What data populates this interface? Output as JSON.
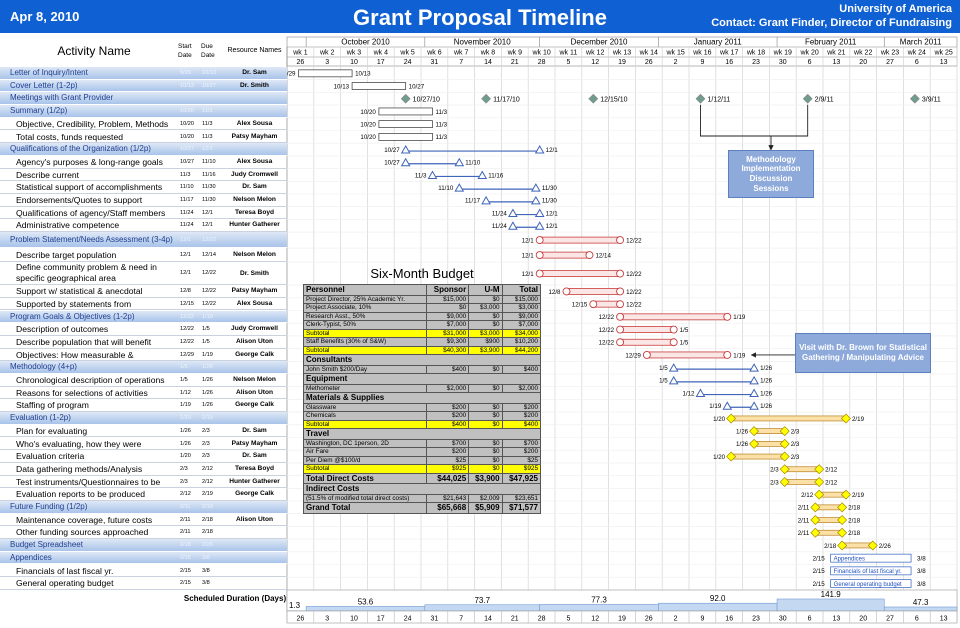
{
  "header": {
    "date": "Apr 8, 2010",
    "title": "Grant Proposal Timeline",
    "organization": "University of America",
    "contact": "Contact: Grant Finder, Director of Fundraising"
  },
  "columns": {
    "activity": "Activity Name",
    "start": "Start Date",
    "due": "Due Date",
    "resource": "Resource Names"
  },
  "timeline": {
    "months": [
      "October 2010",
      "November 2010",
      "December 2010",
      "January 2011",
      "February 2011",
      "March 2011"
    ],
    "weeks": [
      "wk 1",
      "wk 2",
      "wk 3",
      "wk 4",
      "wk 5",
      "wk 6",
      "wk 7",
      "wk 8",
      "wk 9",
      "wk 10",
      "wk 11",
      "wk 12",
      "wk 13",
      "wk 14",
      "wk 15",
      "wk 16",
      "wk 17",
      "wk 18",
      "wk 19",
      "wk 20",
      "wk 21",
      "wk 22",
      "wk 23",
      "wk 24",
      "wk 25"
    ],
    "days": [
      26,
      3,
      10,
      17,
      24,
      31,
      7,
      14,
      21,
      28,
      5,
      12,
      19,
      26,
      2,
      9,
      16,
      23,
      30,
      6,
      13,
      20,
      27,
      6,
      13
    ]
  },
  "rows": [
    {
      "group": true,
      "name": "Letter of Inquiry/Intent",
      "start": "9/29",
      "due": "10/13",
      "resource": "Dr. Sam"
    },
    {
      "group": true,
      "name": "Cover Letter (1-2p)",
      "start": "10/13",
      "due": "10/27",
      "resource": "Dr. Smith"
    },
    {
      "group": true,
      "name": "Meetings with Grant Provider",
      "milestones": [
        "10/27/10",
        "11/17/10",
        "12/15/10",
        "1/12/11",
        "2/9/11",
        "3/9/11"
      ]
    },
    {
      "group": true,
      "name": "Summary (1/2p)",
      "start": "10/20",
      "due": "11/3"
    },
    {
      "name": "Objective, Credibility, Problem, Methods",
      "start": "10/20",
      "due": "11/3",
      "resource": "Alex Sousa"
    },
    {
      "name": "Total costs, funds requested",
      "start": "10/20",
      "due": "11/3",
      "resource": "Patsy Mayham"
    },
    {
      "group": true,
      "name": "Qualifications of the Organization (1/2p)",
      "start": "10/27",
      "due": "12/1"
    },
    {
      "name": "Agency's purposes & long-range goals",
      "start": "10/27",
      "due": "11/10",
      "resource": "Alex Sousa"
    },
    {
      "name": "Describe current",
      "start": "11/3",
      "due": "11/16",
      "resource": "Judy Cromwell"
    },
    {
      "name": "Statistical support of accomplishments",
      "start": "11/10",
      "due": "11/30",
      "resource": "Dr. Sam"
    },
    {
      "name": "Endorsements/Quotes to support",
      "start": "11/17",
      "due": "11/30",
      "resource": "Nelson Melon"
    },
    {
      "name": "Qualifications of agency/Staff members",
      "start": "11/24",
      "due": "12/1",
      "resource": "Teresa Boyd"
    },
    {
      "name": "Administrative competence",
      "start": "11/24",
      "due": "12/1",
      "resource": "Hunter Gatherer"
    },
    {
      "group": true,
      "name": "Problem Statement/Needs Assessment (3-4p)",
      "start": "12/1",
      "due": "12/22"
    },
    {
      "name": "Describe target population",
      "start": "12/1",
      "due": "12/14",
      "resource": "Nelson Melon"
    },
    {
      "name": "Define community problem & need in specific geographical area",
      "start": "12/1",
      "due": "12/22",
      "resource": "Dr. Smith"
    },
    {
      "name": "Support w/ statistical & anecdotal",
      "start": "12/8",
      "due": "12/22",
      "resource": "Patsy Mayham"
    },
    {
      "name": "Supported by statements from",
      "start": "12/15",
      "due": "12/22",
      "resource": "Alex Sousa"
    },
    {
      "group": true,
      "name": "Program Goals & Objectives (1-2p)",
      "start": "12/22",
      "due": "1/19"
    },
    {
      "name": "Description of outcomes",
      "start": "12/22",
      "due": "1/5",
      "resource": "Judy Cromwell"
    },
    {
      "name": "Describe population that will benefit",
      "start": "12/22",
      "due": "1/5",
      "resource": "Alison Uton"
    },
    {
      "name": "Objectives: How measurable &",
      "start": "12/29",
      "due": "1/19",
      "resource": "George Calk"
    },
    {
      "group": true,
      "name": "Methodology (4+p)",
      "start": "1/5",
      "due": "1/26"
    },
    {
      "name": "Chronological description of operations",
      "start": "1/5",
      "due": "1/26",
      "resource": "Nelson Melon"
    },
    {
      "name": "Reasons for selections of activities",
      "start": "1/12",
      "due": "1/26",
      "resource": "Alison Uton"
    },
    {
      "name": "Staffing of program",
      "start": "1/19",
      "due": "1/26",
      "resource": "George Calk"
    },
    {
      "group": true,
      "name": "Evaluation (1-2p)",
      "start": "1/20",
      "due": "2/19"
    },
    {
      "name": "Plan for evaluating",
      "start": "1/26",
      "due": "2/3",
      "resource": "Dr. Sam"
    },
    {
      "name": "Who's evaluating, how they were",
      "start": "1/26",
      "due": "2/3",
      "resource": "Patsy Mayham"
    },
    {
      "name": "Evaluation criteria",
      "start": "1/20",
      "due": "2/3",
      "resource": "Dr. Sam"
    },
    {
      "name": "Data gathering methods/Analysis",
      "start": "2/3",
      "due": "2/12",
      "resource": "Teresa Boyd"
    },
    {
      "name": "Test instruments/Questionnaires to be",
      "start": "2/3",
      "due": "2/12",
      "resource": "Hunter Gatherer"
    },
    {
      "name": "Evaluation reports to be produced",
      "start": "2/12",
      "due": "2/19",
      "resource": "George Calk"
    },
    {
      "group": true,
      "name": "Future Funding (1/2p)",
      "start": "2/11",
      "due": "2/18"
    },
    {
      "name": "Maintenance coverage, future costs",
      "start": "2/11",
      "due": "2/18",
      "resource": "Alison Uton"
    },
    {
      "name": "Other funding sources approached",
      "start": "2/11",
      "due": "2/18"
    },
    {
      "group": true,
      "name": "Budget Spreadsheet",
      "start": "2/18",
      "due": "2/26"
    },
    {
      "group": true,
      "name": "Appendices",
      "start": "2/15",
      "due": "3/8"
    },
    {
      "name": "Financials of last fiscal yr.",
      "start": "2/15",
      "due": "3/8"
    },
    {
      "name": "General operating budget",
      "start": "2/15",
      "due": "3/8"
    }
  ],
  "callouts": [
    "Methodology Implementation Discussion Sessions",
    "Visit with Dr. Brown for Statistical Gathering / Manipulating Advice"
  ],
  "budget": {
    "title": "Six-Month Budget",
    "header": [
      "Personnel",
      "Sponsor",
      "U-M",
      "Total"
    ],
    "rows": [
      {
        "cells": [
          "Project Director, 25% Academic Yr.",
          "$15,000",
          "$0",
          "$15,000"
        ]
      },
      {
        "cells": [
          "Project Associate, 10%",
          "$0",
          "$3,000",
          "$3,000"
        ]
      },
      {
        "cells": [
          "Research Asst., 50%",
          "$9,000",
          "$0",
          "$9,000"
        ]
      },
      {
        "cells": [
          "Clerk-Typist, 50%",
          "$7,000",
          "$0",
          "$7,000"
        ]
      },
      {
        "cells": [
          "Subtotal",
          "$31,000",
          "$3,000",
          "$34,000"
        ],
        "highlight": true
      },
      {
        "cells": [
          "Staff Benefits (30% of S&W)",
          "$9,300",
          "$900",
          "$10,200"
        ]
      },
      {
        "cells": [
          "Subtotal",
          "$40,300",
          "$3,900",
          "$44,200"
        ],
        "highlight": true
      },
      {
        "cells": [
          "Consultants"
        ]
      },
      {
        "cells": [
          "John Smith $200/Day",
          "$400",
          "$0",
          "$400"
        ]
      },
      {
        "cells": [
          "Equipment"
        ]
      },
      {
        "cells": [
          "Methometer",
          "$2,000",
          "$0",
          "$2,000"
        ]
      },
      {
        "cells": [
          "Materials & Supplies"
        ]
      },
      {
        "cells": [
          "Glassware",
          "$200",
          "$0",
          "$200"
        ]
      },
      {
        "cells": [
          "Chemicals",
          "$200",
          "$0",
          "$200"
        ]
      },
      {
        "cells": [
          "Subtotal",
          "$400",
          "$0",
          "$400"
        ],
        "highlight": true
      },
      {
        "cells": [
          "Travel"
        ]
      },
      {
        "cells": [
          "Washington, DC 1person, 2D",
          "$700",
          "$0",
          "$700"
        ]
      },
      {
        "cells": [
          "Air Fare",
          "$200",
          "$0",
          "$200"
        ]
      },
      {
        "cells": [
          "Per Diem @$100/d",
          "$25",
          "$0",
          "$25"
        ]
      },
      {
        "cells": [
          "Subtotal",
          "$925",
          "$0",
          "$925"
        ],
        "highlight": true
      },
      {
        "cells": [
          "Total Direct Costs",
          "$44,025",
          "$3,900",
          "$47,925"
        ],
        "bold": true
      },
      {
        "cells": [
          "Indirect Costs"
        ]
      },
      {
        "cells": [
          "(51.5% of modified total direct costs)",
          "$21,643",
          "$2,009",
          "$23,651"
        ]
      },
      {
        "cells": [
          "Grand Total",
          "$65,668",
          "$5,909",
          "$71,577"
        ],
        "bold": true
      }
    ]
  },
  "footer": {
    "label": "Scheduled Duration (Days)",
    "durations": [
      1.3,
      53.6,
      73.7,
      77.3,
      {
        "value": 92,
        "label": "92.0"
      },
      141.9,
      47.3
    ]
  }
}
